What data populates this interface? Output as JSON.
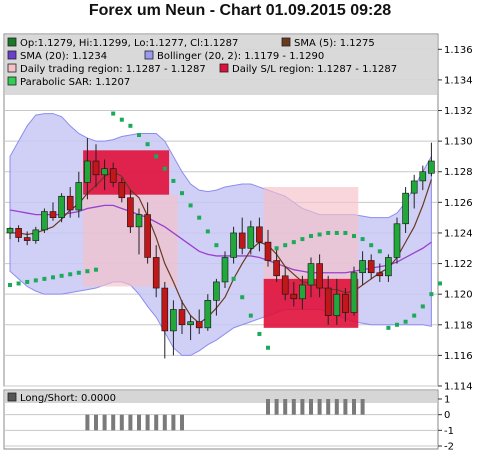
{
  "title": "Forex um Neun - Chart 01.09.2015 09:28",
  "colors": {
    "panel_bg": "#ffffff",
    "legend_bg": "#d6d6d6",
    "grid": "#c8c8c8",
    "bollinger_fill": "#c8c8f4",
    "bollinger_stroke": "#8c8cf0",
    "sma20": "#9b3fd0",
    "sma5": "#6b3a1e",
    "sar": "#1aaa5a",
    "bull": "#22a83a",
    "bear": "#c01818",
    "wick": "#222222",
    "trading_region": "#f5c0c8",
    "sl_region": "#e0103a",
    "bars": "#7a7a7a"
  },
  "legend": {
    "items": [
      {
        "label": "Op:1.1279, Hi:1.1299, Lo:1.1277, Cl:1.1287",
        "swatch": "#1a7a2a"
      },
      {
        "label": "SMA (5): 1.1275",
        "swatch": "#6b3a1e"
      },
      {
        "label": "SMA (20): 1.1234",
        "swatch": "#6a3fd0"
      },
      {
        "label": "Bollinger (20, 2): 1.1179 - 1.1290",
        "swatch": "#9a9af0"
      },
      {
        "label": "Daily trading region: 1.1287 - 1.1287",
        "swatch": "#f5c0c8"
      },
      {
        "label": "Daily S/L region: 1.1287 - 1.1287",
        "swatch": "#e0103a"
      },
      {
        "label": "Parabolic SAR: 1.1207",
        "swatch": "#33cc55"
      }
    ],
    "sub_label": "Long/Short: 0.0000",
    "sub_swatch": "#555555"
  },
  "chart_data": [
    {
      "type": "candlestick",
      "title": "Forex um Neun - Chart 01.09.2015 09:28",
      "ylim": [
        1.114,
        1.137
      ],
      "y_ticks": [
        "1.136",
        "1.134",
        "1.132",
        "1.130",
        "1.128",
        "1.126",
        "1.124",
        "1.122",
        "1.120",
        "1.118",
        "1.116",
        "1.114"
      ],
      "grid": true,
      "candles": [
        {
          "o": 1.124,
          "h": 1.1244,
          "l": 1.1236,
          "c": 1.1243
        },
        {
          "o": 1.1243,
          "h": 1.1245,
          "l": 1.1234,
          "c": 1.1237
        },
        {
          "o": 1.1237,
          "h": 1.1241,
          "l": 1.1232,
          "c": 1.1235
        },
        {
          "o": 1.1235,
          "h": 1.1244,
          "l": 1.1233,
          "c": 1.1242
        },
        {
          "o": 1.1242,
          "h": 1.1256,
          "l": 1.124,
          "c": 1.1254
        },
        {
          "o": 1.1254,
          "h": 1.126,
          "l": 1.1248,
          "c": 1.125
        },
        {
          "o": 1.125,
          "h": 1.1266,
          "l": 1.1247,
          "c": 1.1264
        },
        {
          "o": 1.1264,
          "h": 1.127,
          "l": 1.125,
          "c": 1.1255
        },
        {
          "o": 1.1255,
          "h": 1.128,
          "l": 1.125,
          "c": 1.1273
        },
        {
          "o": 1.1273,
          "h": 1.1302,
          "l": 1.1262,
          "c": 1.1287
        },
        {
          "o": 1.1287,
          "h": 1.1298,
          "l": 1.127,
          "c": 1.1278
        },
        {
          "o": 1.1278,
          "h": 1.1288,
          "l": 1.1268,
          "c": 1.1282
        },
        {
          "o": 1.1282,
          "h": 1.1286,
          "l": 1.127,
          "c": 1.1273
        },
        {
          "o": 1.1273,
          "h": 1.1276,
          "l": 1.126,
          "c": 1.1263
        },
        {
          "o": 1.1263,
          "h": 1.1268,
          "l": 1.124,
          "c": 1.1244
        },
        {
          "o": 1.1244,
          "h": 1.1256,
          "l": 1.1226,
          "c": 1.1252
        },
        {
          "o": 1.1252,
          "h": 1.126,
          "l": 1.122,
          "c": 1.1224
        },
        {
          "o": 1.1224,
          "h": 1.1232,
          "l": 1.1198,
          "c": 1.1204
        },
        {
          "o": 1.1204,
          "h": 1.1208,
          "l": 1.1158,
          "c": 1.1176
        },
        {
          "o": 1.1176,
          "h": 1.1196,
          "l": 1.116,
          "c": 1.119
        },
        {
          "o": 1.119,
          "h": 1.1196,
          "l": 1.1174,
          "c": 1.118
        },
        {
          "o": 1.118,
          "h": 1.1186,
          "l": 1.117,
          "c": 1.1182
        },
        {
          "o": 1.1182,
          "h": 1.119,
          "l": 1.1174,
          "c": 1.1178
        },
        {
          "o": 1.1178,
          "h": 1.12,
          "l": 1.1176,
          "c": 1.1196
        },
        {
          "o": 1.1196,
          "h": 1.121,
          "l": 1.1186,
          "c": 1.1208
        },
        {
          "o": 1.1208,
          "h": 1.1228,
          "l": 1.1204,
          "c": 1.1224
        },
        {
          "o": 1.1224,
          "h": 1.1244,
          "l": 1.122,
          "c": 1.124
        },
        {
          "o": 1.124,
          "h": 1.125,
          "l": 1.1226,
          "c": 1.123
        },
        {
          "o": 1.123,
          "h": 1.1248,
          "l": 1.1226,
          "c": 1.1244
        },
        {
          "o": 1.1244,
          "h": 1.125,
          "l": 1.1228,
          "c": 1.1234
        },
        {
          "o": 1.1234,
          "h": 1.1242,
          "l": 1.1218,
          "c": 1.1222
        },
        {
          "o": 1.1222,
          "h": 1.123,
          "l": 1.1208,
          "c": 1.1212
        },
        {
          "o": 1.1212,
          "h": 1.1218,
          "l": 1.1196,
          "c": 1.12
        },
        {
          "o": 1.12,
          "h": 1.1208,
          "l": 1.1192,
          "c": 1.1197
        },
        {
          "o": 1.1197,
          "h": 1.1212,
          "l": 1.119,
          "c": 1.1206
        },
        {
          "o": 1.1206,
          "h": 1.1224,
          "l": 1.1198,
          "c": 1.122
        },
        {
          "o": 1.122,
          "h": 1.1226,
          "l": 1.1198,
          "c": 1.1204
        },
        {
          "o": 1.1204,
          "h": 1.1212,
          "l": 1.118,
          "c": 1.1186
        },
        {
          "o": 1.1186,
          "h": 1.121,
          "l": 1.118,
          "c": 1.12
        },
        {
          "o": 1.12,
          "h": 1.1204,
          "l": 1.1182,
          "c": 1.1188
        },
        {
          "o": 1.1188,
          "h": 1.1218,
          "l": 1.1186,
          "c": 1.1214
        },
        {
          "o": 1.1214,
          "h": 1.1228,
          "l": 1.1206,
          "c": 1.1222
        },
        {
          "o": 1.1222,
          "h": 1.1226,
          "l": 1.121,
          "c": 1.1214
        },
        {
          "o": 1.1214,
          "h": 1.122,
          "l": 1.1208,
          "c": 1.1212
        },
        {
          "o": 1.1212,
          "h": 1.1226,
          "l": 1.1208,
          "c": 1.1224
        },
        {
          "o": 1.1224,
          "h": 1.125,
          "l": 1.122,
          "c": 1.1246
        },
        {
          "o": 1.1246,
          "h": 1.127,
          "l": 1.124,
          "c": 1.1266
        },
        {
          "o": 1.1266,
          "h": 1.1278,
          "l": 1.1256,
          "c": 1.1274
        },
        {
          "o": 1.1274,
          "h": 1.1284,
          "l": 1.1268,
          "c": 1.128
        },
        {
          "o": 1.1279,
          "h": 1.1299,
          "l": 1.1277,
          "c": 1.1287
        }
      ],
      "sma5": [
        1.124,
        1.124,
        1.1239,
        1.124,
        1.1242,
        1.1244,
        1.1249,
        1.1255,
        1.1259,
        1.1266,
        1.1271,
        1.1277,
        1.128,
        1.1277,
        1.1268,
        1.1263,
        1.1251,
        1.1237,
        1.122,
        1.1208,
        1.1195,
        1.1186,
        1.1181,
        1.1185,
        1.1191,
        1.1198,
        1.121,
        1.122,
        1.1229,
        1.1234,
        1.1232,
        1.1226,
        1.1218,
        1.1213,
        1.1208,
        1.1207,
        1.1205,
        1.1203,
        1.1203,
        1.1201,
        1.1202,
        1.1206,
        1.121,
        1.1214,
        1.1217,
        1.1224,
        1.1234,
        1.1244,
        1.1258,
        1.1275
      ],
      "sma20": [
        1.1255,
        1.1254,
        1.1253,
        1.1252,
        1.1252,
        1.1252,
        1.1252,
        1.1253,
        1.1254,
        1.1256,
        1.1257,
        1.1258,
        1.1258,
        1.1256,
        1.1254,
        1.1252,
        1.125,
        1.1247,
        1.1244,
        1.124,
        1.1236,
        1.1232,
        1.1228,
        1.1226,
        1.1225,
        1.1225,
        1.1225,
        1.1225,
        1.1225,
        1.1224,
        1.1222,
        1.122,
        1.1218,
        1.1216,
        1.1215,
        1.1214,
        1.1214,
        1.1214,
        1.1214,
        1.1214,
        1.1215,
        1.1216,
        1.1217,
        1.1218,
        1.1219,
        1.1221,
        1.1224,
        1.1227,
        1.123,
        1.1234
      ],
      "boll_upper": [
        1.129,
        1.13,
        1.131,
        1.1317,
        1.1318,
        1.1318,
        1.1316,
        1.131,
        1.1305,
        1.1302,
        1.13,
        1.13,
        1.1301,
        1.1303,
        1.1304,
        1.1305,
        1.1305,
        1.1305,
        1.13,
        1.129,
        1.128,
        1.1272,
        1.1268,
        1.1267,
        1.1268,
        1.127,
        1.1271,
        1.1272,
        1.1272,
        1.127,
        1.1268,
        1.1266,
        1.1264,
        1.126,
        1.1256,
        1.1254,
        1.1252,
        1.1252,
        1.1252,
        1.1252,
        1.1252,
        1.1251,
        1.125,
        1.125,
        1.125,
        1.1253,
        1.126,
        1.127,
        1.128,
        1.129
      ],
      "boll_lower": [
        1.1215,
        1.121,
        1.1205,
        1.1202,
        1.12,
        1.12,
        1.12,
        1.1201,
        1.1202,
        1.1203,
        1.1204,
        1.1206,
        1.1208,
        1.1208,
        1.1206,
        1.12,
        1.1192,
        1.1185,
        1.1175,
        1.1165,
        1.116,
        1.116,
        1.1163,
        1.1167,
        1.117,
        1.1174,
        1.1178,
        1.118,
        1.1182,
        1.1184,
        1.1186,
        1.1188,
        1.119,
        1.119,
        1.119,
        1.119,
        1.119,
        1.1188,
        1.1186,
        1.1184,
        1.1182,
        1.1181,
        1.118,
        1.118,
        1.118,
        1.118,
        1.118,
        1.118,
        1.118,
        1.1179
      ],
      "sar": [
        [
          0,
          1.1206
        ],
        [
          1,
          1.1207
        ],
        [
          2,
          1.1208
        ],
        [
          3,
          1.1209
        ],
        [
          4,
          1.121
        ],
        [
          5,
          1.1211
        ],
        [
          6,
          1.1212
        ],
        [
          7,
          1.1213
        ],
        [
          8,
          1.1214
        ],
        [
          9,
          1.1215
        ],
        [
          10,
          1.1216
        ],
        [
          12,
          1.1318
        ],
        [
          13,
          1.1314
        ],
        [
          14,
          1.131
        ],
        [
          15,
          1.1304
        ],
        [
          16,
          1.1298
        ],
        [
          17,
          1.129
        ],
        [
          18,
          1.1282
        ],
        [
          19,
          1.1274
        ],
        [
          20,
          1.1266
        ],
        [
          21,
          1.1258
        ],
        [
          22,
          1.125
        ],
        [
          23,
          1.1241
        ],
        [
          24,
          1.1232
        ],
        [
          25,
          1.1222
        ],
        [
          26,
          1.121
        ],
        [
          27,
          1.1198
        ],
        [
          28,
          1.1186
        ],
        [
          29,
          1.1174
        ],
        [
          30,
          1.1165
        ],
        [
          31,
          1.123
        ],
        [
          32,
          1.1232
        ],
        [
          33,
          1.1234
        ],
        [
          34,
          1.1236
        ],
        [
          35,
          1.1238
        ],
        [
          36,
          1.1239
        ],
        [
          37,
          1.124
        ],
        [
          38,
          1.124
        ],
        [
          39,
          1.124
        ],
        [
          40,
          1.1238
        ],
        [
          41,
          1.1236
        ],
        [
          42,
          1.1232
        ],
        [
          43,
          1.1228
        ],
        [
          44,
          1.1178
        ],
        [
          45,
          1.118
        ],
        [
          46,
          1.1182
        ],
        [
          47,
          1.1186
        ],
        [
          48,
          1.1192
        ],
        [
          49,
          1.12
        ],
        [
          50,
          1.1207
        ]
      ],
      "regions": [
        {
          "kind": "trading",
          "start": 8.5,
          "end": 19.5,
          "low": 1.1205,
          "high": 1.1265
        },
        {
          "kind": "sl",
          "start": 8.5,
          "end": 18.5,
          "low": 1.1265,
          "high": 1.1294
        },
        {
          "kind": "trading",
          "start": 29.5,
          "end": 40.5,
          "low": 1.12,
          "high": 1.127
        },
        {
          "kind": "sl",
          "start": 29.5,
          "end": 40.5,
          "low": 1.1178,
          "high": 1.121
        }
      ]
    },
    {
      "type": "bar",
      "title": "Long/Short: 0.0000",
      "ylim": [
        -2,
        1
      ],
      "y_ticks": [
        "1",
        "0",
        "-1",
        "-2"
      ],
      "grid": true,
      "series": [
        {
          "name": "Long",
          "range": [
            30,
            41
          ],
          "value": 1
        },
        {
          "name": "Short",
          "range": [
            9,
            20
          ],
          "value": -1
        }
      ]
    }
  ]
}
